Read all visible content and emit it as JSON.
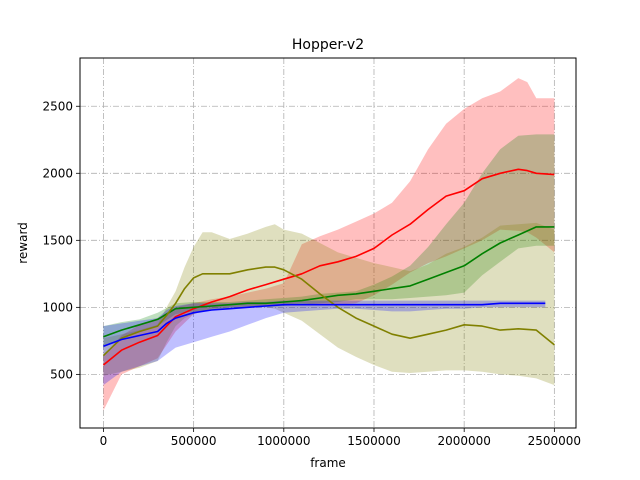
{
  "chart_data": {
    "type": "line",
    "title": "Hopper-v2",
    "xlabel": "frame",
    "ylabel": "reward",
    "xlim": [
      -130000,
      2620000
    ],
    "ylim": [
      100,
      2860
    ],
    "grid": true,
    "x_ticks": [
      0,
      500000,
      1000000,
      1500000,
      2000000,
      2500000
    ],
    "x_tick_labels": [
      "0",
      "500000",
      "1000000",
      "1500000",
      "2000000",
      "2500000"
    ],
    "y_ticks": [
      500,
      1000,
      1500,
      2000,
      2500
    ],
    "y_tick_labels": [
      "500",
      "1000",
      "1500",
      "2000",
      "2500"
    ],
    "series": [
      {
        "color": "#ff0000",
        "band_color": "#ff0000",
        "x": [
          0,
          100000,
          200000,
          300000,
          400000,
          500000,
          600000,
          700000,
          800000,
          900000,
          1000000,
          1100000,
          1200000,
          1300000,
          1400000,
          1500000,
          1600000,
          1700000,
          1800000,
          1900000,
          2000000,
          2100000,
          2200000,
          2300000,
          2350000,
          2400000,
          2500000
        ],
        "mean": [
          570,
          680,
          740,
          790,
          930,
          990,
          1040,
          1080,
          1130,
          1170,
          1210,
          1250,
          1310,
          1340,
          1380,
          1440,
          1540,
          1620,
          1730,
          1830,
          1870,
          1960,
          2000,
          2030,
          2020,
          2000,
          1990
        ],
        "upper": [
          640,
          790,
          870,
          920,
          1000,
          1030,
          1060,
          1080,
          1110,
          1140,
          1180,
          1470,
          1530,
          1580,
          1640,
          1700,
          1780,
          1940,
          2180,
          2370,
          2480,
          2560,
          2610,
          2710,
          2680,
          2560,
          2560
        ],
        "lower": [
          230,
          500,
          560,
          620,
          820,
          950,
          990,
          1000,
          1000,
          1010,
          1020,
          1030,
          1020,
          1020,
          1030,
          1090,
          1170,
          1260,
          1330,
          1380,
          1440,
          1500,
          1580,
          1570,
          1560,
          1520,
          1410
        ]
      },
      {
        "color": "#008000",
        "band_color": "#008000",
        "x": [
          0,
          100000,
          200000,
          300000,
          400000,
          500000,
          600000,
          700000,
          800000,
          900000,
          1000000,
          1100000,
          1200000,
          1300000,
          1400000,
          1500000,
          1600000,
          1700000,
          1800000,
          1900000,
          2000000,
          2100000,
          2200000,
          2300000,
          2400000,
          2500000
        ],
        "mean": [
          780,
          830,
          870,
          910,
          990,
          1000,
          1010,
          1020,
          1030,
          1030,
          1040,
          1050,
          1070,
          1090,
          1100,
          1120,
          1140,
          1160,
          1210,
          1260,
          1310,
          1400,
          1480,
          1540,
          1600,
          1600
        ],
        "upper": [
          860,
          890,
          910,
          960,
          1030,
          1040,
          1040,
          1040,
          1050,
          1060,
          1070,
          1080,
          1100,
          1110,
          1120,
          1170,
          1230,
          1310,
          1450,
          1620,
          1780,
          2000,
          2180,
          2280,
          2290,
          2290
        ],
        "lower": [
          700,
          770,
          820,
          860,
          950,
          970,
          980,
          990,
          1000,
          1000,
          1010,
          1020,
          1030,
          1040,
          1060,
          1060,
          1060,
          1070,
          1080,
          1090,
          1110,
          1240,
          1340,
          1440,
          1460,
          1460
        ]
      },
      {
        "color": "#808000",
        "band_color": "#808000",
        "x": [
          0,
          100000,
          200000,
          300000,
          350000,
          400000,
          450000,
          500000,
          550000,
          600000,
          700000,
          800000,
          900000,
          950000,
          1000000,
          1100000,
          1200000,
          1300000,
          1400000,
          1500000,
          1600000,
          1700000,
          1800000,
          1900000,
          2000000,
          2100000,
          2200000,
          2300000,
          2400000,
          2500000
        ],
        "mean": [
          640,
          770,
          820,
          860,
          940,
          1030,
          1140,
          1220,
          1250,
          1250,
          1250,
          1280,
          1300,
          1300,
          1280,
          1210,
          1100,
          1000,
          920,
          860,
          800,
          770,
          800,
          830,
          870,
          860,
          830,
          840,
          830,
          720
        ],
        "upper": [
          770,
          800,
          830,
          870,
          1000,
          1120,
          1300,
          1450,
          1560,
          1560,
          1510,
          1550,
          1600,
          1620,
          1580,
          1550,
          1480,
          1410,
          1370,
          1330,
          1300,
          1270,
          1320,
          1400,
          1450,
          1520,
          1610,
          1620,
          1630,
          1580
        ],
        "lower": [
          490,
          520,
          550,
          600,
          740,
          860,
          920,
          950,
          970,
          980,
          1000,
          1010,
          1000,
          990,
          960,
          900,
          800,
          700,
          630,
          570,
          520,
          510,
          520,
          530,
          530,
          520,
          500,
          490,
          470,
          420
        ]
      },
      {
        "color": "#0000ff",
        "band_color": "#0000ff",
        "x": [
          0,
          100000,
          200000,
          300000,
          350000,
          400000,
          500000,
          600000,
          700000,
          800000,
          900000,
          1000000,
          1100000,
          1200000,
          1300000,
          1400000,
          1500000,
          1600000,
          1700000,
          1800000,
          1900000,
          2000000,
          2100000,
          2200000,
          2300000,
          2400000,
          2450000
        ],
        "mean": [
          710,
          760,
          790,
          820,
          880,
          920,
          960,
          980,
          990,
          1000,
          1010,
          1020,
          1020,
          1020,
          1020,
          1020,
          1020,
          1020,
          1020,
          1020,
          1020,
          1020,
          1020,
          1030,
          1030,
          1030,
          1030
        ],
        "upper": [
          860,
          880,
          900,
          920,
          980,
          1010,
          1030,
          1030,
          1030,
          1040,
          1040,
          1050,
          1050,
          1050,
          1050,
          1050,
          1050,
          1050,
          1050,
          1050,
          1050,
          1050,
          1050,
          1050,
          1050,
          1050,
          1050
        ],
        "lower": [
          420,
          520,
          560,
          600,
          650,
          700,
          740,
          780,
          820,
          870,
          920,
          960,
          970,
          980,
          990,
          990,
          980,
          970,
          970,
          980,
          990,
          990,
          1000,
          1000,
          1000,
          1000,
          1000
        ]
      }
    ]
  }
}
